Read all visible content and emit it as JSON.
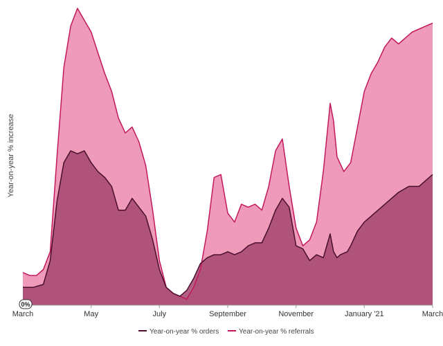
{
  "chart_data": {
    "type": "area",
    "ylabel": "Year-on-year % increase",
    "zero_label": "0%",
    "x_tick_labels": [
      "March",
      "May",
      "July",
      "September",
      "November",
      "January '21",
      "March"
    ],
    "x_tick_positions": [
      0,
      2,
      4,
      6,
      8,
      10,
      12
    ],
    "xlim": [
      0,
      12
    ],
    "ylim": [
      0,
      100
    ],
    "grid": false,
    "legend_position": "bottom-center",
    "series": [
      {
        "name": "Year-on-year % orders",
        "line_color": "#4a0e2c",
        "fill_color": "#a3466f",
        "x": [
          0,
          0.3,
          0.6,
          0.8,
          1.0,
          1.2,
          1.4,
          1.6,
          1.8,
          2.0,
          2.2,
          2.4,
          2.6,
          2.8,
          3.0,
          3.2,
          3.4,
          3.6,
          3.8,
          4.0,
          4.2,
          4.4,
          4.6,
          4.8,
          5.0,
          5.2,
          5.4,
          5.6,
          5.8,
          6.0,
          6.2,
          6.4,
          6.6,
          6.8,
          7.0,
          7.2,
          7.4,
          7.6,
          7.8,
          8.0,
          8.2,
          8.4,
          8.6,
          8.8,
          9.0,
          9.1,
          9.2,
          9.3,
          9.5,
          9.6,
          9.8,
          10.0,
          10.2,
          10.5,
          10.8,
          11.0,
          11.3,
          11.6,
          11.8,
          12.0
        ],
        "y": [
          6,
          6,
          7,
          15,
          35,
          48,
          52,
          51,
          52,
          48,
          45,
          43,
          40,
          32,
          32,
          36,
          33,
          30,
          22,
          12,
          6,
          4,
          3,
          5,
          9,
          14,
          16,
          17,
          17,
          18,
          17,
          18,
          20,
          21,
          21,
          26,
          32,
          36,
          33,
          20,
          19,
          15,
          17,
          16,
          24,
          18,
          16,
          17,
          18,
          20,
          25,
          28,
          30,
          33,
          36,
          38,
          40,
          40,
          42,
          44
        ]
      },
      {
        "name": "Year-on-year % referrals",
        "line_color": "#c2185b",
        "fill_color": "#ef9ab9",
        "x": [
          0,
          0.2,
          0.4,
          0.6,
          0.8,
          1.0,
          1.2,
          1.4,
          1.6,
          1.8,
          2.0,
          2.2,
          2.4,
          2.6,
          2.8,
          3.0,
          3.2,
          3.4,
          3.6,
          3.8,
          4.0,
          4.2,
          4.4,
          4.6,
          4.8,
          5.0,
          5.2,
          5.4,
          5.6,
          5.8,
          6.0,
          6.2,
          6.4,
          6.6,
          6.8,
          7.0,
          7.2,
          7.4,
          7.6,
          7.8,
          8.0,
          8.2,
          8.4,
          8.6,
          8.8,
          9.0,
          9.1,
          9.2,
          9.4,
          9.6,
          9.8,
          10.0,
          10.2,
          10.4,
          10.6,
          10.8,
          11.0,
          11.2,
          11.4,
          11.6,
          11.8,
          12.0
        ],
        "y": [
          11,
          10,
          10,
          12,
          18,
          50,
          80,
          94,
          100,
          96,
          92,
          85,
          78,
          72,
          63,
          58,
          60,
          55,
          47,
          32,
          15,
          6,
          4,
          3,
          2,
          6,
          12,
          25,
          43,
          44,
          31,
          28,
          34,
          33,
          34,
          32,
          40,
          52,
          56,
          40,
          26,
          20,
          22,
          28,
          45,
          68,
          62,
          50,
          45,
          48,
          60,
          72,
          78,
          82,
          87,
          90,
          88,
          90,
          92,
          93,
          94,
          95
        ]
      }
    ]
  }
}
